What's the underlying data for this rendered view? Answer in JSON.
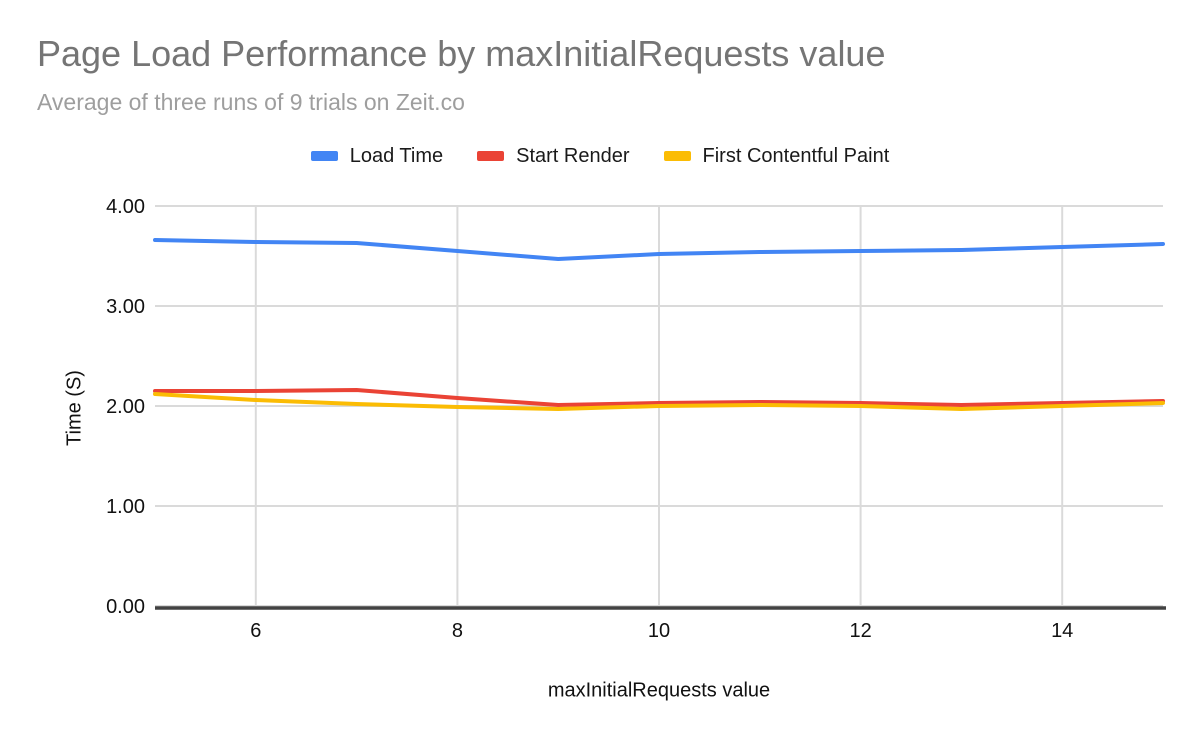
{
  "chart": {
    "title": "Page Load Performance by maxInitialRequests value",
    "subtitle": "Average of three runs of 9 trials on Zeit.co",
    "x_axis_title": "maxInitialRequests value",
    "y_axis_title": "Time (S)"
  },
  "legend": {
    "items": [
      {
        "label": "Load Time",
        "color": "#4285F4"
      },
      {
        "label": "Start Render",
        "color": "#EA4335"
      },
      {
        "label": "First Contentful Paint",
        "color": "#FBBC04"
      }
    ]
  },
  "colors": {
    "title": "#757575",
    "subtitle": "#9e9e9e",
    "grid": "#dadada",
    "axis": "#424242",
    "tick_text": "#111111"
  },
  "chart_data": {
    "type": "line",
    "title": "Page Load Performance by maxInitialRequests value",
    "subtitle": "Average of three runs of 9 trials on Zeit.co",
    "xlabel": "maxInitialRequests value",
    "ylabel": "Time (S)",
    "xlim": [
      5,
      15
    ],
    "ylim": [
      0,
      4
    ],
    "grid": true,
    "legend_position": "top",
    "x": [
      5,
      6,
      7,
      8,
      9,
      10,
      11,
      12,
      13,
      14,
      15
    ],
    "x_ticks": [
      6,
      8,
      10,
      12,
      14
    ],
    "x_tick_labels": [
      "6",
      "8",
      "10",
      "12",
      "14"
    ],
    "y_ticks": [
      0,
      1,
      2,
      3,
      4
    ],
    "y_tick_labels": [
      "0.00",
      "1.00",
      "2.00",
      "3.00",
      "4.00"
    ],
    "series": [
      {
        "name": "Load Time",
        "color": "#4285F4",
        "values": [
          3.66,
          3.64,
          3.63,
          3.55,
          3.47,
          3.52,
          3.54,
          3.55,
          3.56,
          3.59,
          3.62
        ]
      },
      {
        "name": "Start Render",
        "color": "#EA4335",
        "values": [
          2.15,
          2.15,
          2.16,
          2.08,
          2.01,
          2.03,
          2.04,
          2.03,
          2.01,
          2.03,
          2.05
        ]
      },
      {
        "name": "First Contentful Paint",
        "color": "#FBBC04",
        "values": [
          2.12,
          2.06,
          2.02,
          1.99,
          1.97,
          2.0,
          2.01,
          2.0,
          1.97,
          2.0,
          2.03
        ]
      }
    ]
  }
}
